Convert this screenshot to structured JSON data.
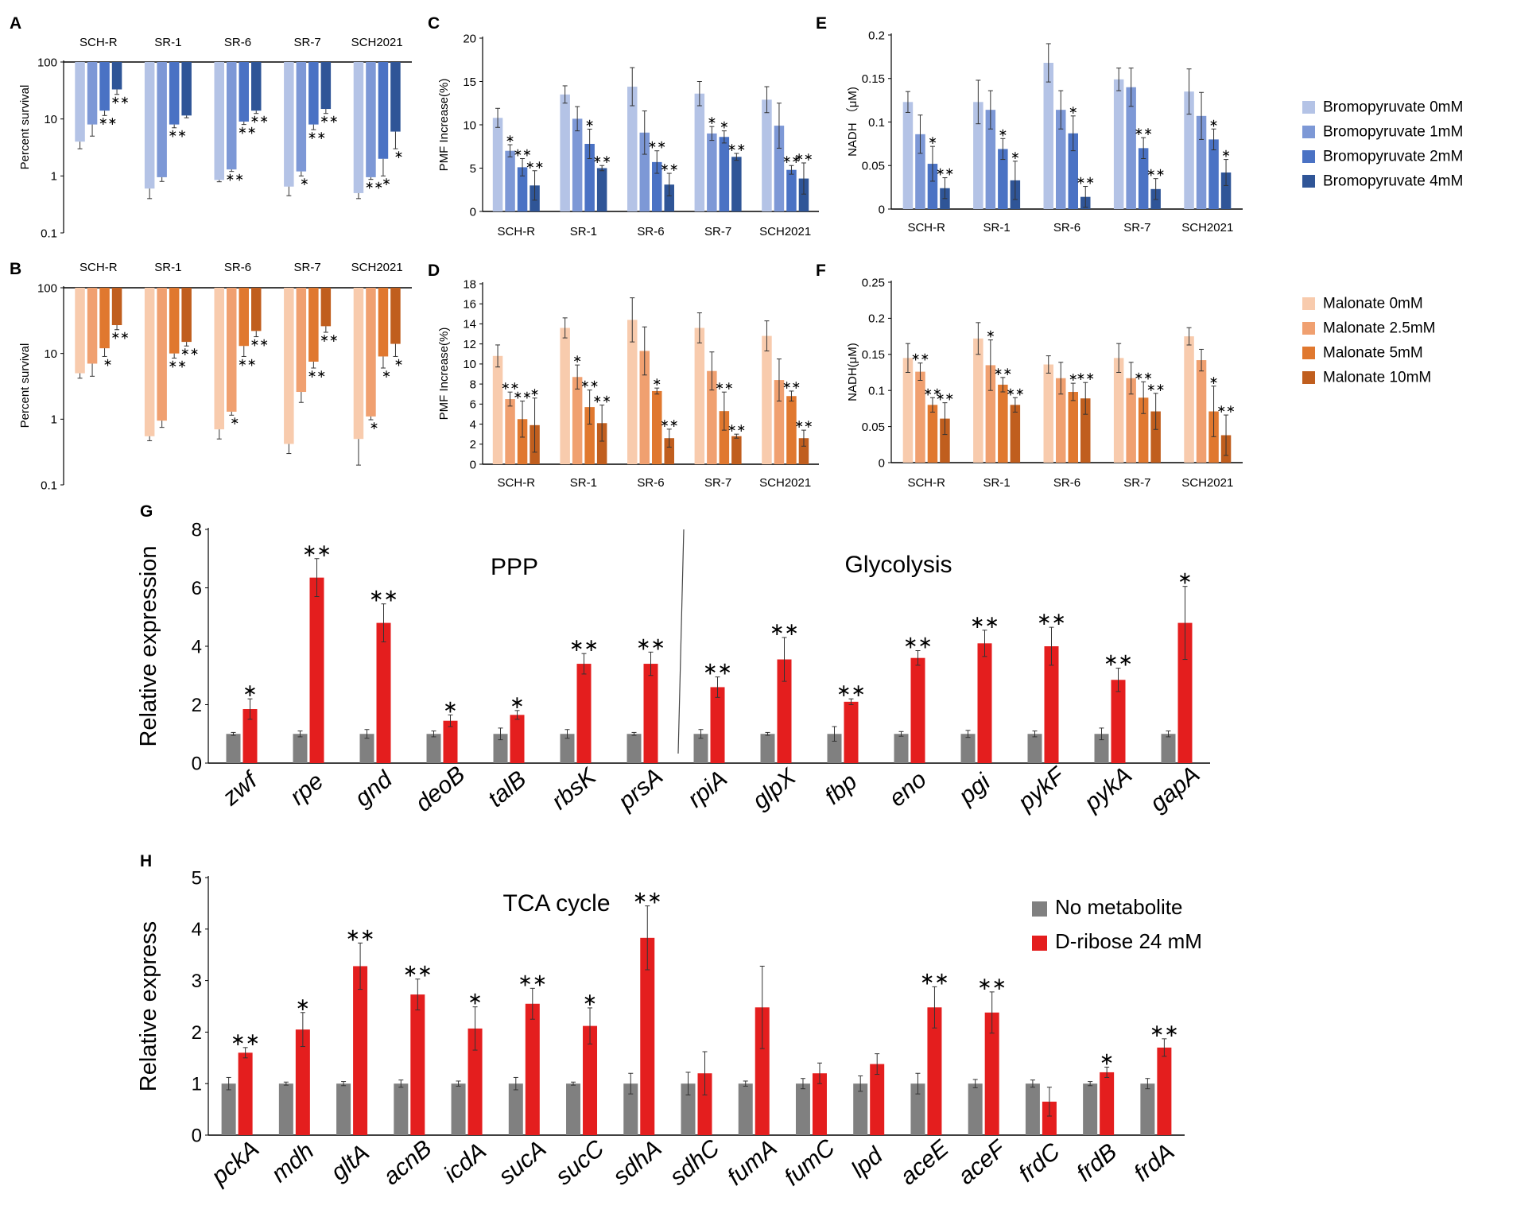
{
  "figure": {
    "panel_labels": [
      "A",
      "B",
      "C",
      "D",
      "E",
      "F",
      "G",
      "H"
    ]
  },
  "legends": {
    "bromopyruvate": [
      "Bromopyruvate 0mM",
      "Bromopyruvate 1mM",
      "Bromopyruvate 2mM",
      "Bromopyruvate 4mM"
    ],
    "malonate": [
      "Malonate 0mM",
      "Malonate 2.5mM",
      "Malonate 5mM",
      "Malonate 10mM"
    ],
    "treatment": [
      "No metabolite",
      "D-ribose 24 mM"
    ]
  },
  "colors": {
    "bromopyruvate": [
      "#b4c3e6",
      "#7d98d6",
      "#4a72c4",
      "#2f5597"
    ],
    "malonate": [
      "#f8cbad",
      "#f0a070",
      "#e0782f",
      "#c05e1e"
    ],
    "treatment": [
      "#808080",
      "#e41e1e"
    ],
    "axis": "#000000",
    "text": "#000000"
  },
  "chart_data": [
    {
      "panel": "A",
      "type": "bar",
      "scale": "log",
      "xlabel": "",
      "ylabel": "Percent survival",
      "ylim": [
        0.1,
        100
      ],
      "yticks": [
        "0.1",
        "1",
        "10",
        "100"
      ],
      "categories": [
        "SCH-R",
        "SR-1",
        "SR-6",
        "SR-7",
        "SCH2021"
      ],
      "series": [
        {
          "name": "Bromopyruvate 0mM",
          "values": [
            4,
            0.6,
            0.85,
            0.65,
            0.5
          ],
          "errors": [
            1,
            0.2,
            0.06,
            0.2,
            0.1
          ],
          "stars": [
            "",
            "",
            "",
            "",
            ""
          ]
        },
        {
          "name": "Bromopyruvate 1mM",
          "values": [
            8,
            0.95,
            1.3,
            1.2,
            0.95
          ],
          "errors": [
            3,
            0.15,
            0.1,
            0.2,
            0.08
          ],
          "stars": [
            "",
            "",
            "**",
            "*",
            "**"
          ]
        },
        {
          "name": "Bromopyruvate 2mM",
          "values": [
            14,
            8,
            9,
            8,
            2
          ],
          "errors": [
            2.5,
            1,
            1,
            1.5,
            1
          ],
          "stars": [
            "**",
            "**",
            "**",
            "**",
            "*"
          ]
        },
        {
          "name": "Bromopyruvate 4mM",
          "values": [
            33,
            11.5,
            14,
            15,
            6
          ],
          "errors": [
            6,
            1,
            1.5,
            2.5,
            3
          ],
          "stars": [
            "**",
            "",
            "**",
            "**",
            "*"
          ]
        }
      ]
    },
    {
      "panel": "B",
      "type": "bar",
      "scale": "log",
      "xlabel": "",
      "ylabel": "Percent survival",
      "ylim": [
        0.1,
        100
      ],
      "yticks": [
        "0.1",
        "1",
        "10",
        "100"
      ],
      "categories": [
        "SCH-R",
        "SR-1",
        "SR-6",
        "SR-7",
        "SCH2021"
      ],
      "series": [
        {
          "name": "Malonate 0mM",
          "values": [
            5,
            0.55,
            0.7,
            0.42,
            0.5
          ],
          "errors": [
            0.8,
            0.08,
            0.2,
            0.12,
            0.3
          ],
          "stars": [
            "",
            "",
            "",
            "",
            ""
          ]
        },
        {
          "name": "Malonate 2.5mM",
          "values": [
            7,
            0.95,
            1.3,
            2.6,
            1.1
          ],
          "errors": [
            2.5,
            0.2,
            0.15,
            0.8,
            0.12
          ],
          "stars": [
            "",
            "",
            "*",
            "",
            "*"
          ]
        },
        {
          "name": "Malonate 5mM",
          "values": [
            12,
            10,
            13,
            7.5,
            9
          ],
          "errors": [
            3,
            1.5,
            4,
            1.5,
            3
          ],
          "stars": [
            "*",
            "**",
            "**",
            "**",
            "*"
          ]
        },
        {
          "name": "Malonate 10mM",
          "values": [
            27,
            15,
            22,
            26,
            14
          ],
          "errors": [
            4,
            2,
            4,
            5,
            5
          ],
          "stars": [
            "**",
            "**",
            "**",
            "**",
            "*"
          ]
        }
      ]
    },
    {
      "panel": "C",
      "type": "bar",
      "xlabel": "",
      "ylabel": "PMF Increase(%)",
      "ylim": [
        0,
        20
      ],
      "yticks": [
        "0",
        "5",
        "10",
        "15",
        "20"
      ],
      "categories": [
        "SCH-R",
        "SR-1",
        "SR-6",
        "SR-7",
        "SCH2021"
      ],
      "series": [
        {
          "name": "Bromopyruvate 0mM",
          "values": [
            10.8,
            13.5,
            14.4,
            13.6,
            12.9
          ],
          "errors": [
            1.1,
            1.0,
            2.2,
            1.4,
            1.5
          ],
          "stars": [
            "",
            "",
            "",
            "",
            ""
          ]
        },
        {
          "name": "Bromopyruvate 1mM",
          "values": [
            7.0,
            10.7,
            9.1,
            9.0,
            9.9
          ],
          "errors": [
            0.7,
            1.4,
            2.5,
            0.8,
            2.6
          ],
          "stars": [
            "*",
            "",
            "",
            "*",
            ""
          ]
        },
        {
          "name": "Bromopyruvate 2mM",
          "values": [
            5.1,
            7.8,
            5.7,
            8.6,
            4.8
          ],
          "errors": [
            1.0,
            1.7,
            1.3,
            0.7,
            0.5
          ],
          "stars": [
            "**",
            "*",
            "**",
            "*",
            "**"
          ]
        },
        {
          "name": "Bromopyruvate 4mM",
          "values": [
            3.0,
            5.0,
            3.1,
            6.3,
            3.8
          ],
          "errors": [
            1.7,
            0.3,
            1.3,
            0.4,
            1.8
          ],
          "stars": [
            "**",
            "**",
            "**",
            "**",
            "**"
          ]
        }
      ]
    },
    {
      "panel": "D",
      "type": "bar",
      "xlabel": "",
      "ylabel": "PMF Increase(%)",
      "ylim": [
        0,
        18
      ],
      "yticks": [
        "0",
        "2",
        "4",
        "6",
        "8",
        "10",
        "12",
        "14",
        "16",
        "18"
      ],
      "categories": [
        "SCH-R",
        "SR-1",
        "SR-6",
        "SR-7",
        "SCH2021"
      ],
      "series": [
        {
          "name": "Malonate 0mM",
          "values": [
            10.8,
            13.6,
            14.4,
            13.6,
            12.8
          ],
          "errors": [
            1.1,
            1.0,
            2.2,
            1.5,
            1.5
          ],
          "stars": [
            "",
            "",
            "",
            "",
            ""
          ]
        },
        {
          "name": "Malonate 2.5mM",
          "values": [
            6.5,
            8.7,
            11.3,
            9.3,
            8.4
          ],
          "errors": [
            0.7,
            1.2,
            2.4,
            1.9,
            2.1
          ],
          "stars": [
            "**",
            "*",
            "",
            "",
            ""
          ]
        },
        {
          "name": "Malonate 5mM",
          "values": [
            4.5,
            5.7,
            7.3,
            5.3,
            6.8
          ],
          "errors": [
            1.8,
            1.7,
            0.3,
            1.9,
            0.5
          ],
          "stars": [
            "**",
            "**",
            "*",
            "**",
            "**"
          ]
        },
        {
          "name": "Malonate 10mM",
          "values": [
            3.9,
            4.1,
            2.6,
            2.8,
            2.6
          ],
          "errors": [
            2.7,
            1.8,
            0.9,
            0.2,
            0.8
          ],
          "stars": [
            "*",
            "**",
            "**",
            "**",
            "**"
          ]
        }
      ]
    },
    {
      "panel": "E",
      "type": "bar",
      "xlabel": "",
      "ylabel": "NADH （μM)",
      "ylim": [
        0,
        0.2
      ],
      "yticks": [
        "0",
        "0.05",
        "0.1",
        "0.15",
        "0.2"
      ],
      "categories": [
        "SCH-R",
        "SR-1",
        "SR-6",
        "SR-7",
        "SCH2021"
      ],
      "series": [
        {
          "name": "Bromopyruvate 0mM",
          "values": [
            0.123,
            0.123,
            0.168,
            0.149,
            0.135
          ],
          "errors": [
            0.012,
            0.025,
            0.022,
            0.013,
            0.026
          ],
          "stars": [
            "",
            "",
            "",
            "",
            ""
          ]
        },
        {
          "name": "Bromopyruvate 1mM",
          "values": [
            0.086,
            0.114,
            0.114,
            0.14,
            0.107
          ],
          "errors": [
            0.022,
            0.022,
            0.022,
            0.022,
            0.027
          ],
          "stars": [
            "",
            "",
            "",
            "",
            ""
          ]
        },
        {
          "name": "Bromopyruvate 2mM",
          "values": [
            0.052,
            0.069,
            0.087,
            0.07,
            0.08
          ],
          "errors": [
            0.02,
            0.012,
            0.02,
            0.012,
            0.012
          ],
          "stars": [
            "*",
            "*",
            "*",
            "**",
            "*"
          ]
        },
        {
          "name": "Bromopyruvate 4mM",
          "values": [
            0.024,
            0.033,
            0.014,
            0.023,
            0.042
          ],
          "errors": [
            0.012,
            0.022,
            0.012,
            0.012,
            0.015
          ],
          "stars": [
            "**",
            "*",
            "**",
            "**",
            "*"
          ]
        }
      ]
    },
    {
      "panel": "F",
      "type": "bar",
      "xlabel": "",
      "ylabel": "NADH(μM)",
      "ylim": [
        0,
        0.25
      ],
      "yticks": [
        "0",
        "0.05",
        "0.1",
        "0.15",
        "0.2",
        "0.25"
      ],
      "categories": [
        "SCH-R",
        "SR-1",
        "SR-6",
        "SR-7",
        "SCH2021"
      ],
      "series": [
        {
          "name": "Malonate 0mM",
          "values": [
            0.145,
            0.172,
            0.136,
            0.145,
            0.175
          ],
          "errors": [
            0.02,
            0.022,
            0.012,
            0.02,
            0.012
          ],
          "stars": [
            "",
            "",
            "",
            "",
            ""
          ]
        },
        {
          "name": "Malonate 2.5mM",
          "values": [
            0.126,
            0.135,
            0.117,
            0.117,
            0.142
          ],
          "errors": [
            0.012,
            0.035,
            0.022,
            0.022,
            0.015
          ],
          "stars": [
            "**",
            "*",
            "",
            "",
            ""
          ]
        },
        {
          "name": "Malonate 5mM",
          "values": [
            0.08,
            0.108,
            0.098,
            0.09,
            0.071
          ],
          "errors": [
            0.01,
            0.01,
            0.012,
            0.022,
            0.035
          ],
          "stars": [
            "**",
            "**",
            "*",
            "**",
            "*"
          ]
        },
        {
          "name": "Malonate 10mM",
          "values": [
            0.061,
            0.08,
            0.089,
            0.071,
            0.038
          ],
          "errors": [
            0.022,
            0.01,
            0.022,
            0.025,
            0.028
          ],
          "stars": [
            "**",
            "**",
            "**",
            "**",
            "**"
          ]
        }
      ]
    },
    {
      "panel": "G",
      "type": "bar",
      "xlabel": "",
      "ylabel": "Relative expression",
      "ylim": [
        0,
        8
      ],
      "yticks": [
        "0",
        "2",
        "4",
        "6",
        "8"
      ],
      "annotations": [
        "PPP",
        "Glycolysis"
      ],
      "categories": [
        "zwf",
        "rpe",
        "gnd",
        "deoB",
        "talB",
        "rbsK",
        "prsA",
        "rpiA",
        "glpX",
        "fbp",
        "eno",
        "pgi",
        "pykF",
        "pykA",
        "gapA"
      ],
      "series": [
        {
          "name": "No metabolite",
          "values": [
            1,
            1,
            1,
            1,
            1,
            1,
            1,
            1,
            1,
            1,
            1,
            1,
            1,
            1,
            1
          ],
          "errors": [
            0.05,
            0.1,
            0.15,
            0.1,
            0.2,
            0.15,
            0.05,
            0.15,
            0.05,
            0.25,
            0.08,
            0.12,
            0.1,
            0.2,
            0.1
          ],
          "stars": [
            "",
            "",
            "",
            "",
            "",
            "",
            "",
            "",
            "",
            "",
            "",
            "",
            "",
            "",
            ""
          ]
        },
        {
          "name": "D-ribose 24 mM",
          "values": [
            1.85,
            6.35,
            4.8,
            1.45,
            1.65,
            3.4,
            3.4,
            2.6,
            3.55,
            2.1,
            3.6,
            4.1,
            4.0,
            2.85,
            4.8
          ],
          "errors": [
            0.35,
            0.65,
            0.65,
            0.2,
            0.15,
            0.35,
            0.4,
            0.35,
            0.75,
            0.1,
            0.25,
            0.45,
            0.65,
            0.4,
            1.25
          ],
          "stars": [
            "*",
            "**",
            "**",
            "*",
            "*",
            "**",
            "**",
            "**",
            "**",
            "**",
            "**",
            "**",
            "**",
            "**",
            "*"
          ]
        }
      ]
    },
    {
      "panel": "H",
      "type": "bar",
      "xlabel": "",
      "ylabel": "Relative express",
      "ylim": [
        0,
        5
      ],
      "yticks": [
        "0",
        "1",
        "2",
        "3",
        "4",
        "5"
      ],
      "annotations": [
        "TCA cycle"
      ],
      "categories": [
        "pckA",
        "mdh",
        "gltA",
        "acnB",
        "icdA",
        "sucA",
        "sucC",
        "sdhA",
        "sdhC",
        "fumA",
        "fumC",
        "lpd",
        "aceE",
        "aceF",
        "frdC",
        "frdB",
        "frdA"
      ],
      "series": [
        {
          "name": "No metabolite",
          "values": [
            1,
            1,
            1,
            1,
            1,
            1,
            1,
            1,
            1,
            1,
            1,
            1,
            1,
            1,
            1,
            1,
            1
          ],
          "errors": [
            0.12,
            0.03,
            0.04,
            0.07,
            0.05,
            0.12,
            0.03,
            0.2,
            0.22,
            0.05,
            0.1,
            0.15,
            0.2,
            0.08,
            0.07,
            0.04,
            0.1
          ],
          "stars": [
            "",
            "",
            "",
            "",
            "",
            "",
            "",
            "",
            "",
            "",
            "",
            "",
            "",
            "",
            "",
            "",
            ""
          ]
        },
        {
          "name": "D-ribose 24 mM",
          "values": [
            1.6,
            2.05,
            3.28,
            2.73,
            2.07,
            2.55,
            2.12,
            3.83,
            1.2,
            2.48,
            1.2,
            1.38,
            2.48,
            2.38,
            0.65,
            1.22,
            1.7
          ],
          "errors": [
            0.1,
            0.33,
            0.45,
            0.3,
            0.42,
            0.3,
            0.35,
            0.62,
            0.42,
            0.8,
            0.2,
            0.2,
            0.4,
            0.4,
            0.28,
            0.1,
            0.17
          ],
          "stars": [
            "**",
            "*",
            "**",
            "**",
            "*",
            "**",
            "*",
            "**",
            "",
            "",
            "",
            "",
            "**",
            "**",
            "",
            "*",
            "**"
          ]
        }
      ]
    }
  ]
}
